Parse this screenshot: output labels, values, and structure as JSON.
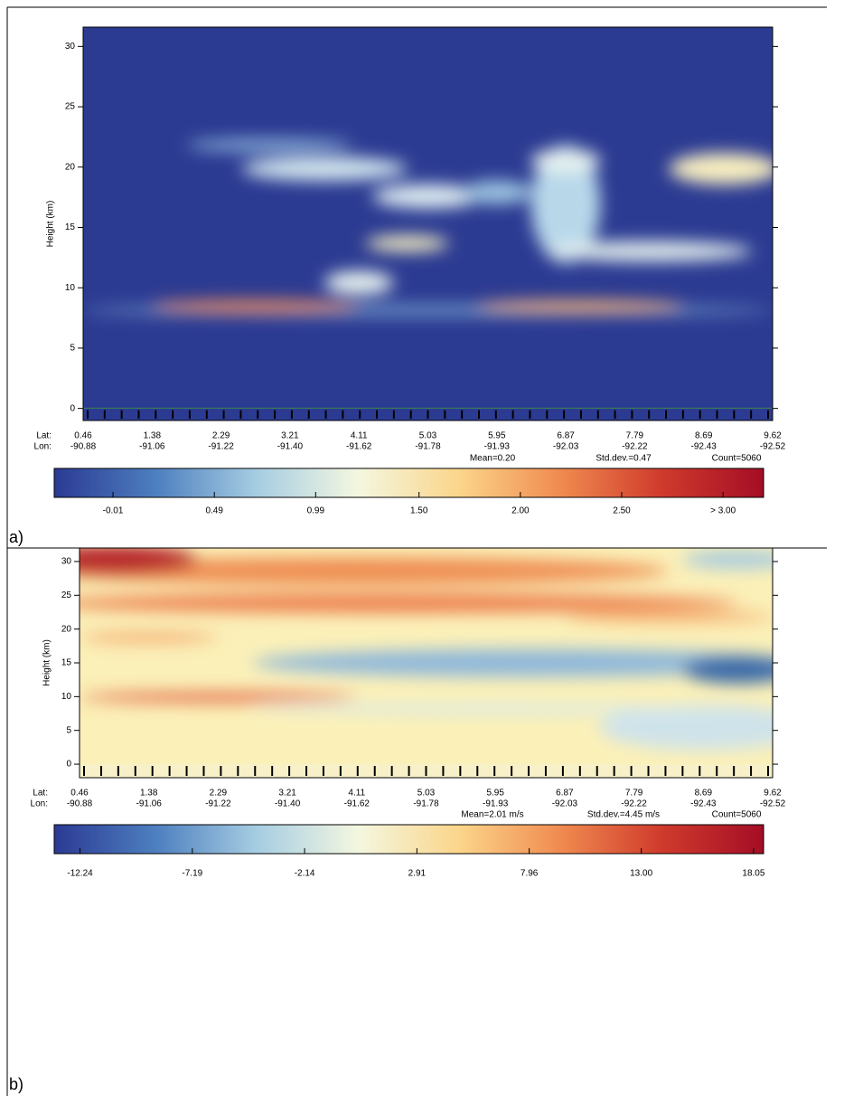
{
  "chart_data": [
    {
      "type": "heatmap",
      "panel_label": "a)",
      "ylabel": "Height (km)",
      "ylim": [
        -1,
        31.6
      ],
      "yticks": [
        0,
        5,
        10,
        15,
        20,
        25,
        30
      ],
      "x_header": [
        "Lat:",
        "Lon:"
      ],
      "lat": [
        "0.46",
        "1.38",
        "2.29",
        "3.21",
        "4.11",
        "5.03",
        "5.95",
        "6.87",
        "7.79",
        "8.69",
        "9.62"
      ],
      "lon": [
        "-90.88",
        "-91.06",
        "-91.22",
        "-91.40",
        "-91.62",
        "-91.78",
        "-91.93",
        "-92.03",
        "-92.22",
        "-92.43",
        "-92.52"
      ],
      "stats": [
        "Mean=0.20",
        "Std.dev.=0.47",
        "Count=5060"
      ],
      "colorbar": {
        "clim": [
          -0.3,
          3.2
        ],
        "ticks": [
          -0.01,
          0.49,
          0.99,
          {
            "value": 1.5,
            "label": "1.50"
          },
          {
            "value": 2,
            "label": "2.00"
          },
          {
            "value": 2.5,
            "label": "2.50"
          },
          {
            "value": 3,
            "label": "> 3.00"
          }
        ],
        "colors": [
          "#2b3a94",
          "#4d7fbf",
          "#a6cde2",
          "#f4f7e0",
          "#fbd58a",
          "#f08a50",
          "#cf3a2c",
          "#a50d26"
        ]
      }
    },
    {
      "type": "heatmap",
      "panel_label": "b)",
      "ylabel": "Height (km)",
      "ylim": [
        -2,
        32
      ],
      "yticks": [
        0,
        5,
        10,
        15,
        20,
        25,
        30
      ],
      "x_header": [
        "Lat:",
        "Lon:"
      ],
      "lat": [
        "0.46",
        "1.38",
        "2.29",
        "3.21",
        "4.11",
        "5.03",
        "5.95",
        "6.87",
        "7.79",
        "8.69",
        "9.62"
      ],
      "lon": [
        "-90.88",
        "-91.06",
        "-91.22",
        "-91.40",
        "-91.62",
        "-91.78",
        "-91.93",
        "-92.03",
        "-92.22",
        "-92.43",
        "-92.52"
      ],
      "stats": [
        "Mean=2.01 m/s",
        "Std.dev.=4.45 m/s",
        "Count=5060"
      ],
      "colorbar": {
        "clim": [
          -13.4,
          18.5
        ],
        "ticks": [
          -12.24,
          -7.19,
          -2.14,
          2.91,
          7.96,
          {
            "value": 13,
            "label": "13.00"
          },
          18.05
        ],
        "colors": [
          "#2b3a94",
          "#4d7fbf",
          "#a6cde2",
          "#f4f7e0",
          "#fbd58a",
          "#f08a50",
          "#cf3a2c",
          "#a50d26"
        ]
      }
    }
  ]
}
